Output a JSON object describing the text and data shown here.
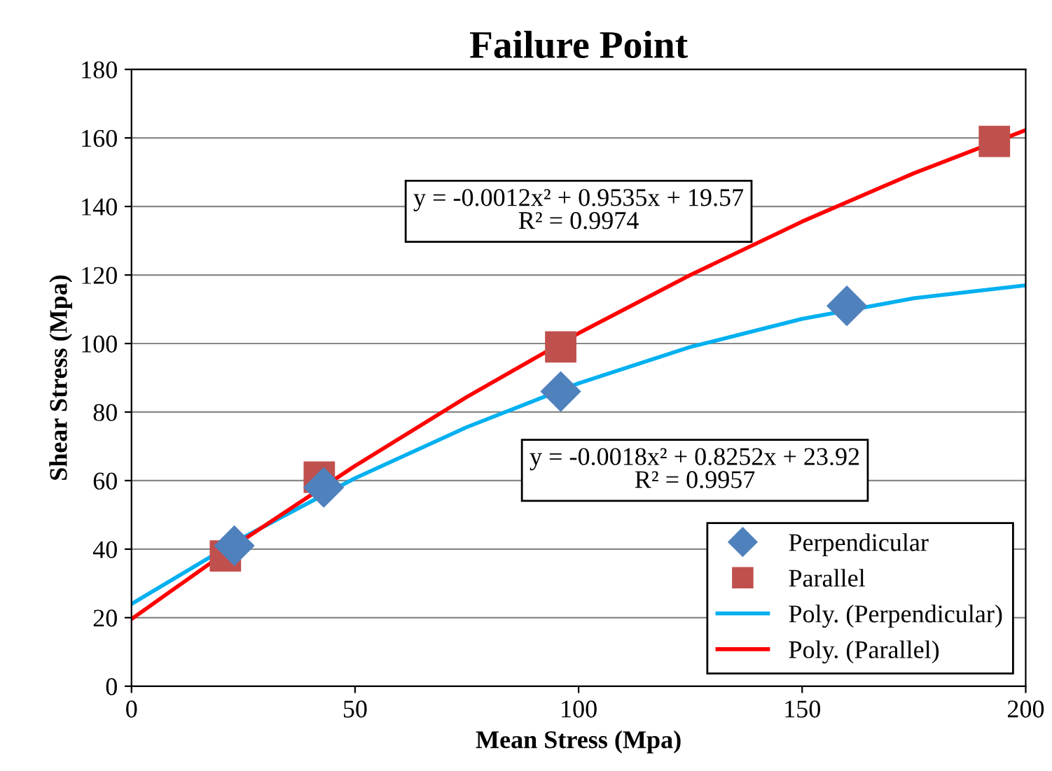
{
  "chart_data": {
    "type": "scatter",
    "title": "Failure Point",
    "xlabel": "Mean Stress (Mpa)",
    "ylabel": "Shear Stress (Mpa)",
    "xlim": [
      0,
      200
    ],
    "xticks": [
      0,
      50,
      100,
      150,
      200
    ],
    "ylim": [
      0,
      180
    ],
    "yticks": [
      0,
      20,
      40,
      60,
      80,
      100,
      120,
      140,
      160,
      180
    ],
    "grid": "y",
    "legend": "bottom right",
    "series": [
      {
        "name": "Perpendicular",
        "marker": "diamond",
        "color": "#4f81bd",
        "x": [
          23,
          43,
          96,
          160
        ],
        "values": [
          41,
          58,
          86,
          111
        ]
      },
      {
        "name": "Parallel",
        "marker": "square",
        "color": "#c0504d",
        "x": [
          21,
          42,
          96,
          193
        ],
        "values": [
          38,
          61,
          99,
          159
        ]
      },
      {
        "name": "Poly. (Perpendicular)",
        "type": "line",
        "marker": "none",
        "color": "#00b0f0",
        "x": [
          0,
          25,
          50,
          75,
          100,
          125,
          150,
          175,
          200
        ],
        "values": [
          24,
          43.4,
          60.7,
          75.6,
          88.4,
          99,
          107.2,
          113.2,
          117
        ]
      },
      {
        "name": "Poly. (Parallel)",
        "type": "line",
        "marker": "none",
        "color": "#ff0000",
        "x": [
          0,
          25,
          50,
          75,
          100,
          125,
          150,
          175,
          200
        ],
        "values": [
          19.6,
          42.7,
          64.3,
          84.4,
          103,
          120,
          135.6,
          149.7,
          162.3
        ]
      }
    ],
    "annotations": [
      "y = -0.0012x² + 0.9535x + 19.57\nR² = 0.9974",
      "y = -0.0018x² + 0.8252x + 23.92\nR² = 0.9957"
    ]
  }
}
